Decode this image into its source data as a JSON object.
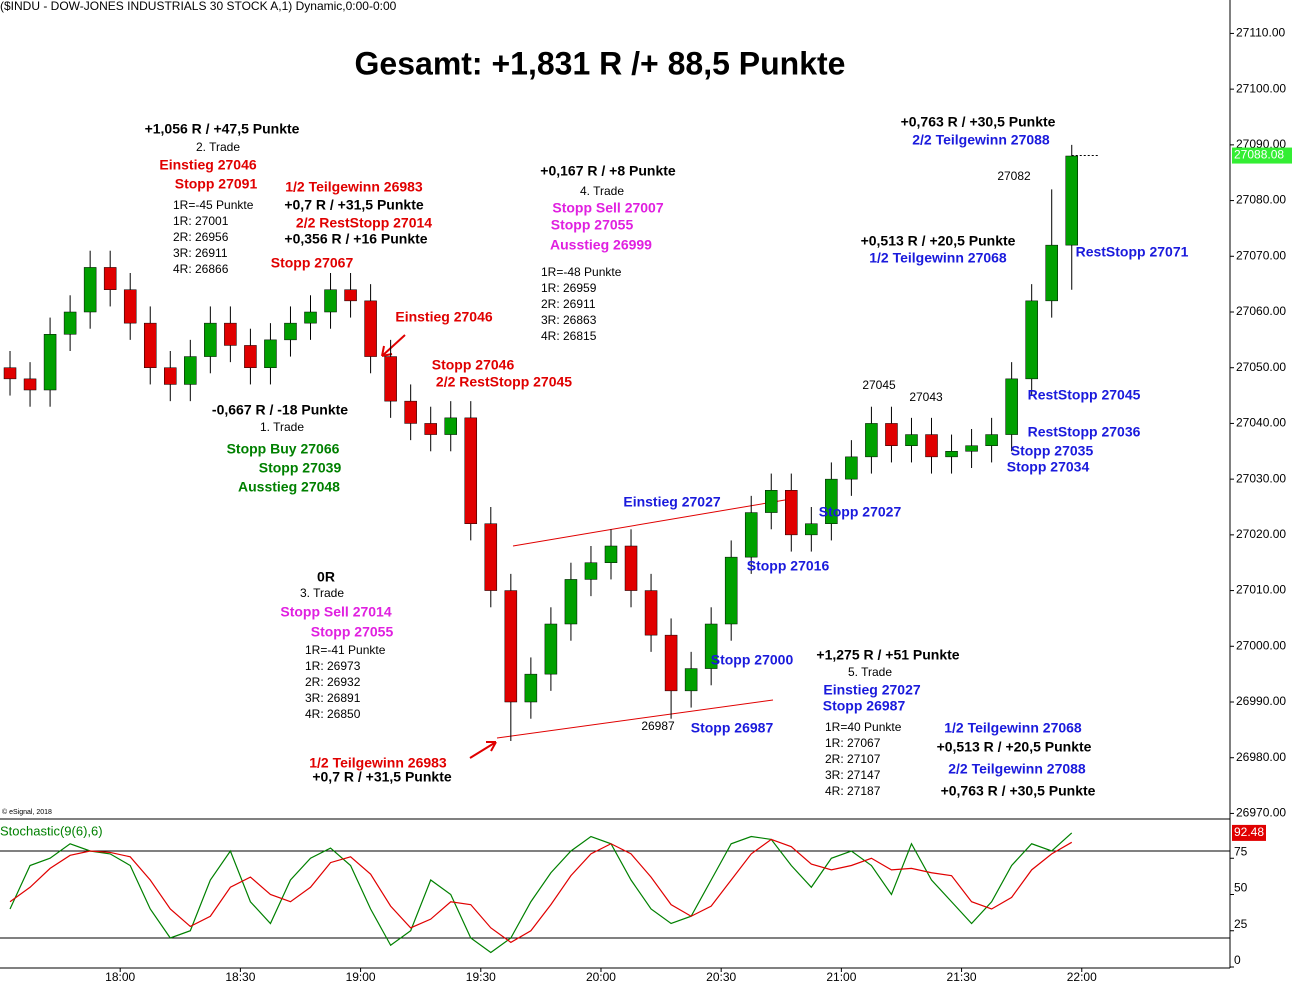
{
  "chart_data": [
    {
      "type": "candlestick",
      "header": "($INDU - DOW-JONES INDUSTRIALS 30 STOCK A,1) Dynamic,0:00-0:00",
      "title": "Gesamt: +1,831 R /+ 88,5 Punkte",
      "source": "© eSignal, 2018",
      "x": [
        "17:30",
        "17:35",
        "17:40",
        "17:45",
        "17:50",
        "17:55",
        "18:00",
        "18:05",
        "18:10",
        "18:15",
        "18:20",
        "18:25",
        "18:30",
        "18:35",
        "18:40",
        "18:45",
        "18:50",
        "18:55",
        "19:00",
        "19:05",
        "19:10",
        "19:15",
        "19:20",
        "19:25",
        "19:30",
        "19:35",
        "19:40",
        "19:45",
        "19:50",
        "19:55",
        "20:00",
        "20:05",
        "20:10",
        "20:15",
        "20:20",
        "20:25",
        "20:30",
        "20:35",
        "20:40",
        "20:45",
        "20:50",
        "20:55",
        "21:00",
        "21:05",
        "21:10",
        "21:15",
        "21:20",
        "21:25",
        "21:30",
        "21:35",
        "21:40",
        "21:45",
        "21:50",
        "21:55"
      ],
      "open": [
        27050,
        27048,
        27046,
        27056,
        27060,
        27068,
        27064,
        27058,
        27050,
        27047,
        27052,
        27058,
        27054,
        27050,
        27055,
        27058,
        27060,
        27064,
        27062,
        27052,
        27044,
        27040,
        27038,
        27041,
        27022,
        27010,
        26990,
        26995,
        27004,
        27012,
        27015,
        27018,
        27010,
        27002,
        26992,
        26996,
        27004,
        27016,
        27024,
        27028,
        27020,
        27022,
        27030,
        27034,
        27040,
        27036,
        27038,
        27034,
        27035,
        27036,
        27038,
        27048,
        27062,
        27072
      ],
      "high": [
        27053,
        27051,
        27059,
        27063,
        27071,
        27071,
        27067,
        27061,
        27053,
        27055,
        27061,
        27061,
        27057,
        27058,
        27061,
        27063,
        27067,
        27067,
        27065,
        27055,
        27047,
        27043,
        27044,
        27044,
        27025,
        27013,
        26998,
        27007,
        27015,
        27018,
        27021,
        27021,
        27013,
        27005,
        26999,
        27007,
        27019,
        27027,
        27031,
        27031,
        27025,
        27033,
        27037,
        27043,
        27043,
        27041,
        27041,
        27038,
        27039,
        27041,
        27051,
        27065,
        27082,
        27090
      ],
      "low": [
        27045,
        27043,
        27043,
        27053,
        27057,
        27061,
        27055,
        27047,
        27044,
        27044,
        27049,
        27051,
        27047,
        27047,
        27052,
        27055,
        27057,
        27059,
        27049,
        27041,
        27037,
        27035,
        27035,
        27019,
        27007,
        26983,
        26987,
        26992,
        27001,
        27009,
        27012,
        27007,
        26999,
        26987,
        26989,
        26993,
        27001,
        27013,
        27021,
        27017,
        27017,
        27019,
        27027,
        27031,
        27033,
        27033,
        27031,
        27031,
        27032,
        27033,
        27035,
        27045,
        27059,
        27064
      ],
      "close": [
        27048,
        27046,
        27056,
        27060,
        27068,
        27064,
        27058,
        27050,
        27047,
        27052,
        27058,
        27054,
        27050,
        27055,
        27058,
        27060,
        27064,
        27062,
        27052,
        27044,
        27040,
        27038,
        27041,
        27022,
        27010,
        26990,
        26995,
        27004,
        27012,
        27015,
        27018,
        27010,
        27002,
        26992,
        26996,
        27004,
        27016,
        27024,
        27028,
        27020,
        27022,
        27030,
        27034,
        27040,
        27036,
        27038,
        27034,
        27035,
        27036,
        27038,
        27048,
        27062,
        27072,
        27088
      ],
      "up_color": "#00a000",
      "down_color": "#e00000",
      "last": 27088.08,
      "ylim": [
        26969,
        27116
      ],
      "yticks": [
        {
          "value": 26970,
          "label": "26970.00"
        },
        {
          "value": 26980,
          "label": "26980.00"
        },
        {
          "value": 26990,
          "label": "26990.00"
        },
        {
          "value": 27000,
          "label": "27000.00"
        },
        {
          "value": 27010,
          "label": "27010.00"
        },
        {
          "value": 27020,
          "label": "27020.00"
        },
        {
          "value": 27030,
          "label": "27030.00"
        },
        {
          "value": 27040,
          "label": "27040.00"
        },
        {
          "value": 27050,
          "label": "27050.00"
        },
        {
          "value": 27060,
          "label": "27060.00"
        },
        {
          "value": 27070,
          "label": "27070.00"
        },
        {
          "value": 27080,
          "label": "27080.00"
        },
        {
          "value": 27090,
          "label": "27090.00"
        },
        {
          "value": 27100,
          "label": "27100.00"
        },
        {
          "value": 27110,
          "label": "27110.00"
        }
      ],
      "xlim": [
        "17:30",
        "22:37"
      ],
      "xticks": [
        "18:00",
        "18:30",
        "19:00",
        "19:30",
        "20:00",
        "20:30",
        "21:00",
        "21:30",
        "22:00"
      ],
      "annotations": [
        "+1,056 R / +47,5 Punkte",
        "2. Trade",
        "Einstieg 27046",
        "Stopp 27091",
        "1R=-45 Punkte",
        "1R: 27001",
        "2R: 26956",
        "3R: 26911",
        "4R: 26866",
        "1/2 Teilgewinn 26983",
        "+0,7 R / +31,5 Punkte",
        "2/2 RestStopp 27014",
        "+0,356 R / +16 Punkte",
        "Stopp 27067",
        "Einstieg 27046",
        "Stopp 27046",
        "2/2 RestStopp 27045",
        "-0,667 R / -18 Punkte",
        "1. Trade",
        "Stopp Buy 27066",
        "Stopp 27039",
        "Ausstieg 27048",
        "0R",
        "3. Trade",
        "Stopp Sell 27014",
        "Stopp 27055",
        "1R=-41 Punkte",
        "1R: 26973",
        "2R: 26932",
        "3R: 26891",
        "4R: 26850",
        "1/2 Teilgewinn 26983",
        "+0,7 R / +31,5 Punkte",
        "+0,167 R / +8 Punkte",
        "4. Trade",
        "Stopp Sell 27007",
        "Stopp 27055",
        "Ausstieg 26999",
        "1R=-48 Punkte",
        "1R: 26959",
        "2R: 26911",
        "3R: 26863",
        "4R: 26815",
        "Einstieg 27027",
        "Stopp 27016",
        "Stopp 27027",
        "Stopp 27000",
        "26987",
        "Stopp 26987",
        "+1,275 R / +51 Punkte",
        "5. Trade",
        "Einstieg 27027",
        "Stopp 26987",
        "1R=40 Punkte",
        "1R: 27067",
        "2R: 27107",
        "3R: 27147",
        "4R: 27187",
        "1/2 Teilgewinn 27068",
        "+0,513 R / +20,5 Punkte",
        "2/2 Teilgewinn 27088",
        "+0,763 R / +30,5 Punkte",
        "27045",
        "27043",
        "27082",
        "+0,513 R / +20,5 Punkte",
        "1/2 Teilgewinn 27068",
        "RestStopp 27071",
        "+0,763 R / +30,5 Punkte",
        "2/2 Teilgewinn 27088",
        "RestStopp 27045",
        "RestStopp 27036",
        "Stopp 27035",
        "Stopp 27034"
      ]
    },
    {
      "type": "line",
      "title": "Stochastic(9(6),6)",
      "series": [
        {
          "color": "#008000",
          "values": [
            40,
            70,
            75,
            85,
            80,
            78,
            70,
            40,
            20,
            25,
            60,
            80,
            45,
            30,
            60,
            75,
            82,
            70,
            40,
            15,
            25,
            60,
            50,
            20,
            10,
            20,
            45,
            65,
            80,
            90,
            85,
            60,
            40,
            30,
            35,
            60,
            85,
            90,
            88,
            70,
            55,
            75,
            80,
            70,
            50,
            85,
            60,
            45,
            30,
            45,
            70,
            85,
            80,
            92.48
          ]
        },
        {
          "color": "#e00000",
          "values": [
            45,
            55,
            68,
            77,
            80,
            79,
            76,
            60,
            40,
            28,
            35,
            55,
            62,
            50,
            45,
            55,
            72,
            76,
            64,
            42,
            27,
            33,
            45,
            43,
            27,
            17,
            25,
            43,
            63,
            78,
            85,
            78,
            62,
            43,
            35,
            42,
            60,
            78,
            88,
            83,
            71,
            67,
            70,
            75,
            67,
            68,
            65,
            63,
            45,
            40,
            48,
            67,
            78,
            86
          ]
        }
      ],
      "last": 92.48,
      "levels": [
        20,
        80
      ],
      "ylim": [
        0,
        100
      ],
      "yticks": [
        0,
        25,
        50,
        75
      ]
    }
  ]
}
